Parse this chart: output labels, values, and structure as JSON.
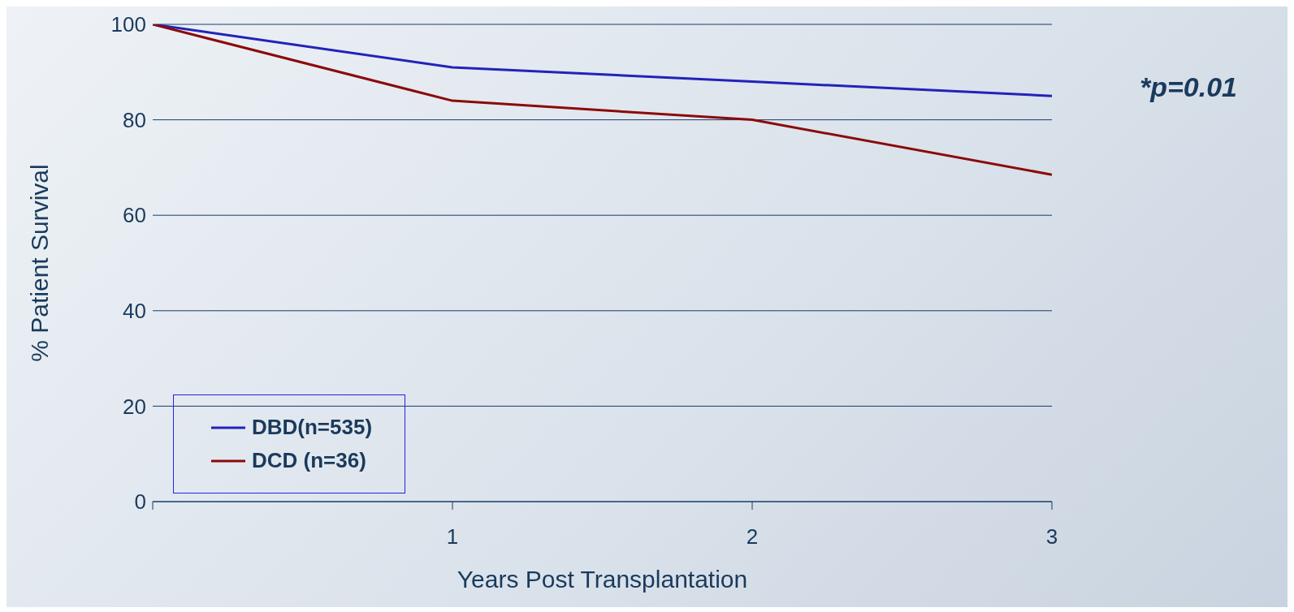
{
  "chart_data": {
    "type": "line",
    "xlabel": "Years Post Transplantation",
    "ylabel": "% Patient Survival",
    "annotations": [
      "*p=0.01"
    ],
    "x": [
      0,
      1,
      2,
      3
    ],
    "series": [
      {
        "name": "DBD(n=535)",
        "color": "#2222bb",
        "values": [
          100,
          91,
          88,
          85
        ]
      },
      {
        "name": "DCD (n=36)",
        "color": "#8b0a0a",
        "values": [
          100,
          84,
          80,
          68.5
        ]
      }
    ],
    "xlim": [
      0,
      3
    ],
    "xticks": [
      {
        "value": 0,
        "label": null
      },
      1,
      2,
      3
    ],
    "ylim": [
      0,
      100
    ],
    "yticks": [
      0,
      20,
      40,
      60,
      80,
      100
    ],
    "grid": "y",
    "legend": "bottom left",
    "marker": "none",
    "line_style": "solid"
  }
}
